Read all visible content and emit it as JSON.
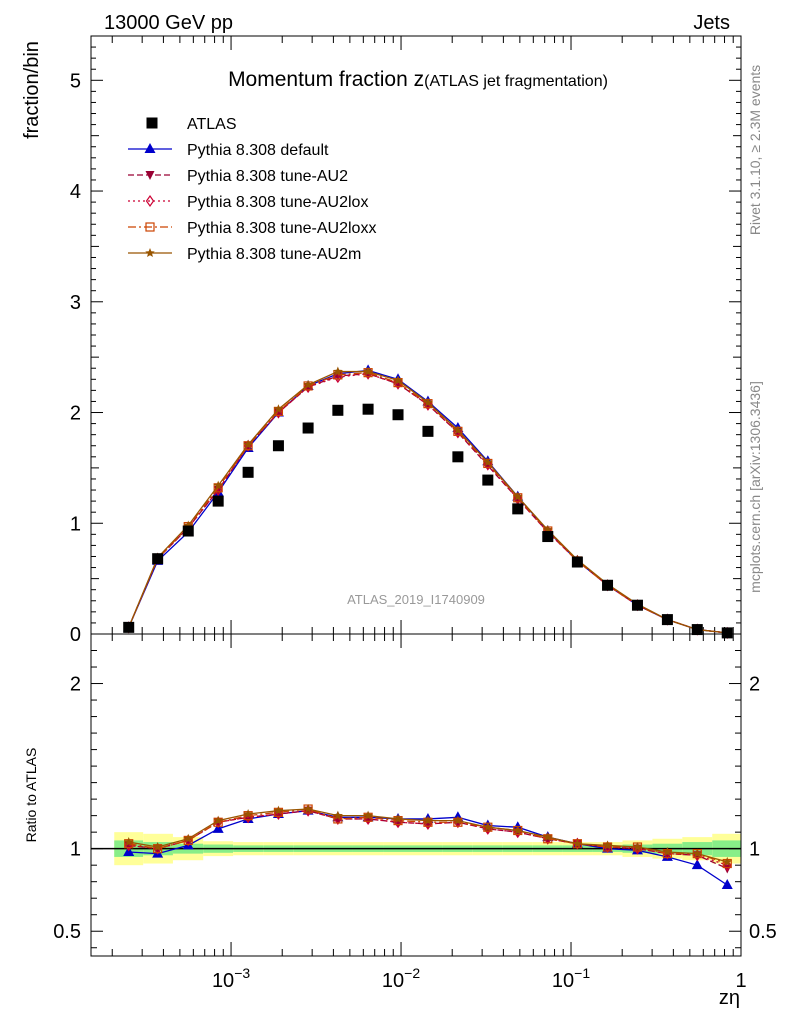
{
  "header": {
    "left": "13000 GeV pp",
    "right": "Jets"
  },
  "side_labels": {
    "rivet": "Rivet 3.1.10, ≥ 2.3M events",
    "mcplots": "mcplots.cern.ch [arXiv:1306.3436]"
  },
  "plot": {
    "title_main": "Momentum fraction z",
    "title_sub": "(ATLAS jet fragmentation)",
    "watermark": "ATLAS_2019_I1740909"
  },
  "chart_data": {
    "type": "scatter",
    "x_scale": "log",
    "xlim": [
      0.00015,
      1
    ],
    "xlabel": "zη",
    "x_ticks": [
      {
        "value": 0.001,
        "base": "10",
        "exp": "−3"
      },
      {
        "value": 0.01,
        "base": "10",
        "exp": "−2"
      },
      {
        "value": 0.1,
        "base": "10",
        "exp": "−1"
      },
      {
        "value": 1,
        "base": "1",
        "exp": ""
      }
    ],
    "main": {
      "ylabel": "fraction/bin",
      "ylim": [
        0,
        5.4
      ],
      "y_ticks": [
        {
          "value": 0,
          "label": "0"
        },
        {
          "value": 1,
          "label": "1"
        },
        {
          "value": 2,
          "label": "2"
        },
        {
          "value": 3,
          "label": "3"
        },
        {
          "value": 4,
          "label": "4"
        },
        {
          "value": 5,
          "label": "5"
        }
      ]
    },
    "ratio": {
      "ylabel": "Ratio to ATLAS",
      "ylim": [
        0.35,
        2.3
      ],
      "y_ticks": [
        {
          "value": 0.5,
          "label": "0.5"
        },
        {
          "value": 1,
          "label": "1"
        },
        {
          "value": 2,
          "label": "2"
        }
      ],
      "band_green": [
        0.05,
        0.04,
        0.03,
        0.025,
        0.02,
        0.02,
        0.02,
        0.02,
        0.02,
        0.02,
        0.02,
        0.02,
        0.02,
        0.02,
        0.02,
        0.02,
        0.02,
        0.025,
        0.03,
        0.04,
        0.05,
        0.06
      ],
      "band_yellow": [
        0.1,
        0.09,
        0.07,
        0.045,
        0.04,
        0.04,
        0.04,
        0.04,
        0.04,
        0.04,
        0.04,
        0.04,
        0.04,
        0.04,
        0.04,
        0.04,
        0.04,
        0.05,
        0.06,
        0.07,
        0.09,
        0.1
      ]
    },
    "x": [
      0.00025,
      0.00037,
      0.00056,
      0.00084,
      0.00126,
      0.0019,
      0.00284,
      0.00425,
      0.0064,
      0.0096,
      0.0144,
      0.0216,
      0.0324,
      0.0486,
      0.073,
      0.109,
      0.164,
      0.246,
      0.369,
      0.553,
      0.83
    ],
    "series": [
      {
        "name": "ATLAS",
        "style": "data",
        "color": "#000000",
        "values": [
          0.06,
          0.68,
          0.93,
          1.2,
          1.46,
          1.7,
          1.86,
          2.02,
          2.03,
          1.98,
          1.83,
          1.6,
          1.39,
          1.13,
          0.88,
          0.65,
          0.44,
          0.26,
          0.13,
          0.04,
          0.01
        ],
        "ratio": [
          1,
          1,
          1,
          1,
          1,
          1,
          1,
          1,
          1,
          1,
          1,
          1,
          1,
          1,
          1,
          1,
          1,
          1,
          1,
          1,
          1
        ]
      },
      {
        "name": "Pythia 8.308 default",
        "style": "solid",
        "marker": "triangle-up",
        "color": "#0000cc",
        "values": [
          0.06,
          0.66,
          0.92,
          1.28,
          1.68,
          2.0,
          2.24,
          2.35,
          2.38,
          2.3,
          2.1,
          1.86,
          1.56,
          1.24,
          0.93,
          0.66,
          0.44,
          0.26,
          0.13,
          0.04,
          0.01
        ],
        "ratio": [
          0.98,
          0.97,
          1.02,
          1.12,
          1.18,
          1.21,
          1.23,
          1.19,
          1.19,
          1.18,
          1.18,
          1.19,
          1.14,
          1.13,
          1.07,
          1.03,
          1.0,
          0.99,
          0.95,
          0.9,
          0.78
        ]
      },
      {
        "name": "Pythia 8.308 tune-AU2",
        "style": "dashed",
        "marker": "triangle-down",
        "color": "#990033",
        "values": [
          0.06,
          0.68,
          0.96,
          1.3,
          1.7,
          2.0,
          2.23,
          2.33,
          2.35,
          2.26,
          2.07,
          1.82,
          1.52,
          1.22,
          0.92,
          0.66,
          0.44,
          0.26,
          0.13,
          0.04,
          0.01
        ],
        "ratio": [
          1.02,
          1.0,
          1.05,
          1.16,
          1.19,
          1.21,
          1.23,
          1.18,
          1.18,
          1.16,
          1.15,
          1.16,
          1.12,
          1.1,
          1.06,
          1.03,
          1.01,
          1.0,
          0.97,
          0.96,
          0.88
        ]
      },
      {
        "name": "Pythia 8.308 tune-AU2lox",
        "style": "dotted",
        "marker": "diamond-open",
        "color": "#cc0033",
        "values": [
          0.06,
          0.68,
          0.96,
          1.3,
          1.7,
          2.0,
          2.23,
          2.32,
          2.35,
          2.26,
          2.07,
          1.82,
          1.53,
          1.22,
          0.92,
          0.66,
          0.44,
          0.26,
          0.13,
          0.04,
          0.01
        ],
        "ratio": [
          1.02,
          1.0,
          1.05,
          1.16,
          1.19,
          1.21,
          1.23,
          1.18,
          1.18,
          1.16,
          1.15,
          1.16,
          1.12,
          1.1,
          1.06,
          1.03,
          1.01,
          1.0,
          0.97,
          0.96,
          0.9
        ]
      },
      {
        "name": "Pythia 8.308 tune-AU2loxx",
        "style": "dashdot",
        "marker": "square-open",
        "color": "#cc4400",
        "values": [
          0.06,
          0.68,
          0.97,
          1.32,
          1.7,
          2.01,
          2.24,
          2.34,
          2.36,
          2.27,
          2.08,
          1.83,
          1.54,
          1.23,
          0.93,
          0.66,
          0.44,
          0.26,
          0.13,
          0.04,
          0.01
        ],
        "ratio": [
          1.03,
          1.0,
          1.05,
          1.16,
          1.2,
          1.22,
          1.24,
          1.18,
          1.19,
          1.17,
          1.16,
          1.16,
          1.13,
          1.11,
          1.06,
          1.03,
          1.01,
          1.01,
          0.97,
          0.97,
          0.91
        ]
      },
      {
        "name": "Pythia 8.308 tune-AU2m",
        "style": "solid",
        "marker": "star",
        "color": "#995500",
        "values": [
          0.06,
          0.69,
          0.98,
          1.34,
          1.71,
          2.03,
          2.25,
          2.37,
          2.37,
          2.29,
          2.09,
          1.84,
          1.55,
          1.24,
          0.94,
          0.67,
          0.45,
          0.27,
          0.13,
          0.04,
          0.01
        ],
        "ratio": [
          1.04,
          1.01,
          1.06,
          1.17,
          1.21,
          1.23,
          1.24,
          1.2,
          1.2,
          1.18,
          1.17,
          1.17,
          1.13,
          1.11,
          1.07,
          1.03,
          1.02,
          1.01,
          0.98,
          0.97,
          0.92
        ]
      }
    ]
  }
}
